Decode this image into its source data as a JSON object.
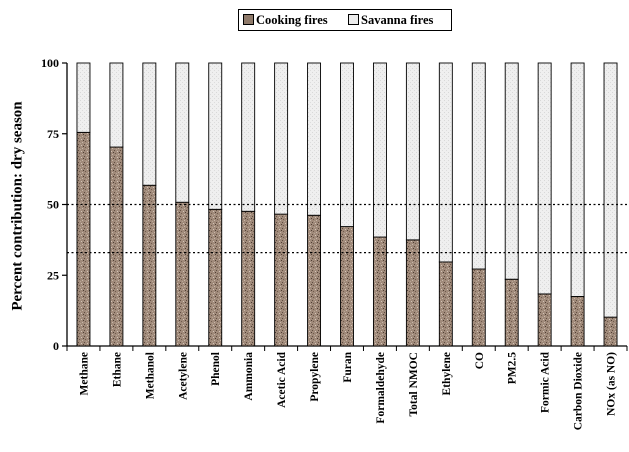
{
  "legend": {
    "items": [
      {
        "label": "Cooking fires",
        "color": "#a08a7a"
      },
      {
        "label": "Savanna fires",
        "color": "#ececec"
      }
    ],
    "position": "top-center"
  },
  "chart_data": {
    "type": "bar",
    "stacked": true,
    "title": "",
    "xlabel": "",
    "ylabel": "Percent contribution: dry season",
    "ylim": [
      0,
      100
    ],
    "yticks": [
      0,
      25,
      50,
      75,
      100
    ],
    "reference_lines": [
      33,
      50
    ],
    "grid": false,
    "categories": [
      "Methane",
      "Ethane",
      "Methanol",
      "Acetylene",
      "Phenol",
      "Ammonia",
      "Acetic Acid",
      "Propylene",
      "Furan",
      "Formaldehyde",
      "Total NMOC",
      "Ethylene",
      "CO",
      "PM2.5",
      "Formic Acid",
      "Carbon Dioxide",
      "NOx (as NO)"
    ],
    "series": [
      {
        "name": "Cooking fires",
        "color": "#a08a7a",
        "values": [
          75.5,
          70.3,
          56.8,
          50.8,
          48.3,
          47.6,
          46.6,
          46.2,
          42.2,
          38.5,
          37.5,
          29.7,
          27.2,
          23.6,
          18.4,
          17.5,
          10.2
        ]
      },
      {
        "name": "Savanna fires",
        "color": "#ececec",
        "values": [
          24.5,
          29.7,
          43.2,
          49.2,
          51.7,
          52.4,
          53.4,
          53.8,
          57.8,
          61.5,
          62.5,
          70.3,
          72.8,
          76.4,
          81.6,
          82.5,
          89.8
        ]
      }
    ]
  }
}
